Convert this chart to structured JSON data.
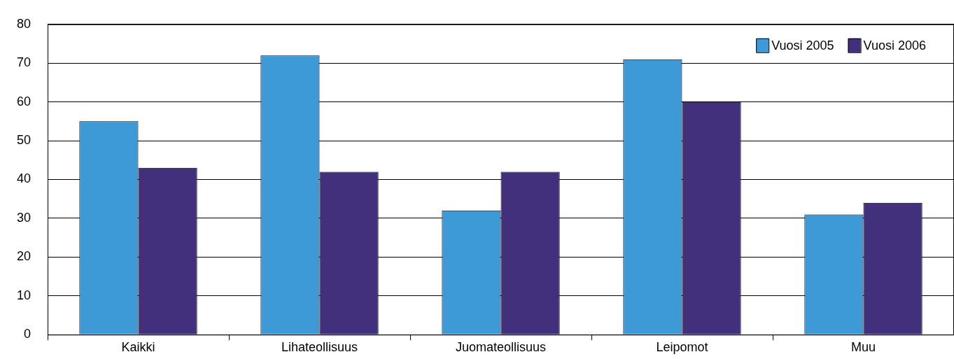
{
  "chart_data": {
    "type": "bar",
    "categories": [
      "Kaikki",
      "Lihateollisuus",
      "Juomateollisuus",
      "Leipomot",
      "Muu"
    ],
    "series": [
      {
        "name": "Vuosi 2005",
        "color": "#3d9ad6",
        "values": [
          55,
          72,
          32,
          71,
          31
        ]
      },
      {
        "name": "Vuosi 2006",
        "color": "#42307d",
        "values": [
          43,
          42,
          42,
          60,
          34
        ]
      }
    ],
    "ylim": [
      0,
      80
    ],
    "yticks": [
      0,
      10,
      20,
      30,
      40,
      50,
      60,
      70,
      80
    ],
    "grid": "y",
    "legend": "top right"
  }
}
